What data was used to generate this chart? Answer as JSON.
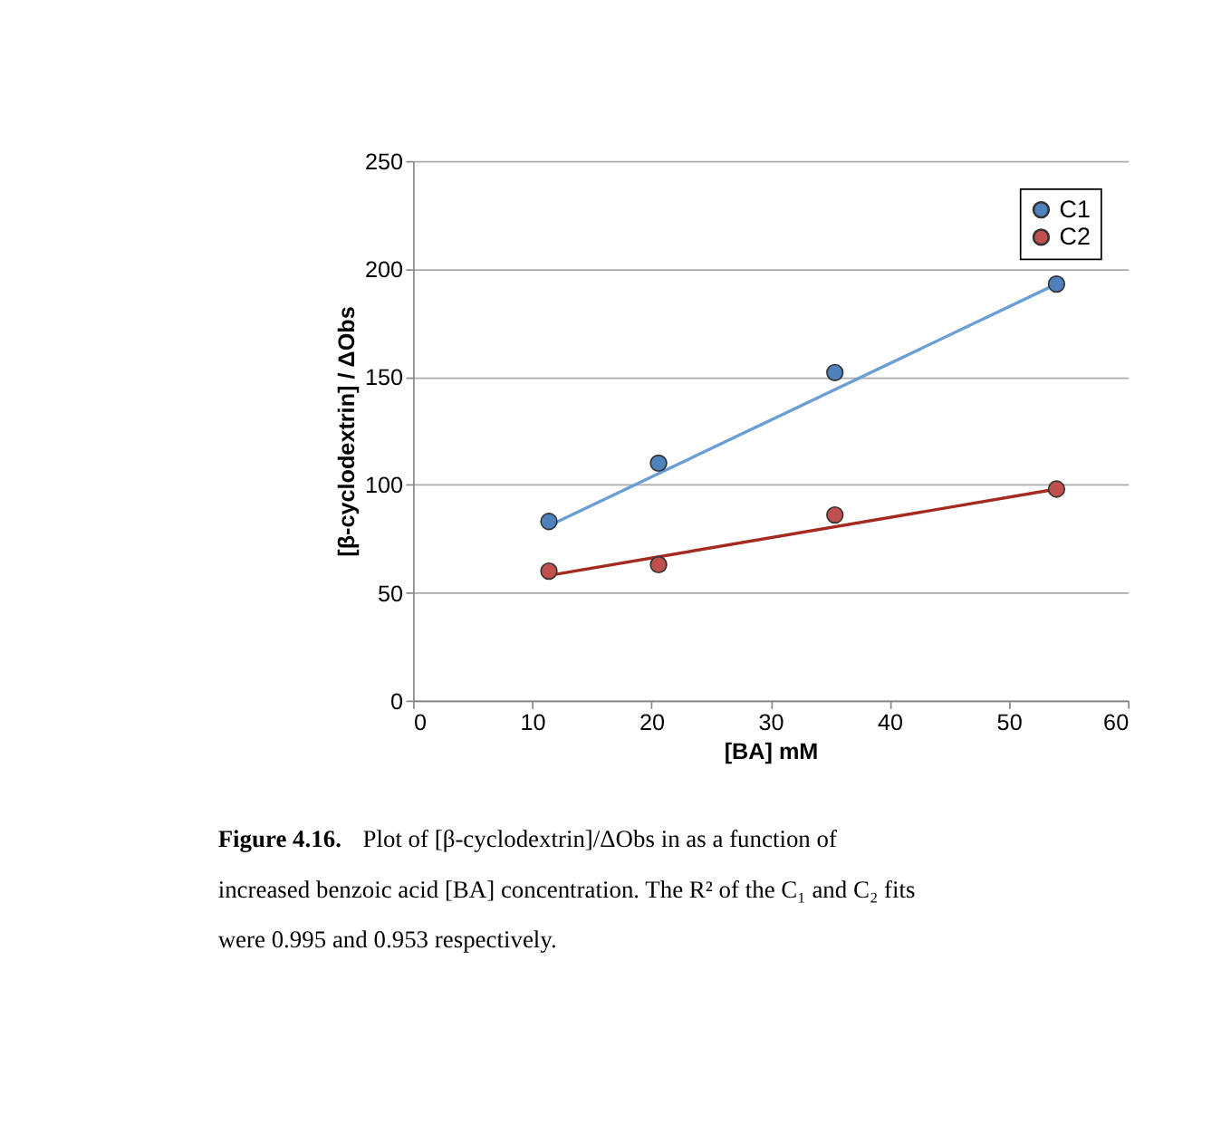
{
  "chart_data": {
    "type": "scatter",
    "xlabel": "[BA] mM",
    "ylabel": "[β-cyclodextrin] / ΔObs",
    "xlim": [
      0,
      60
    ],
    "xticks": [
      0,
      10,
      20,
      30,
      40,
      50,
      60
    ],
    "ylim": [
      0,
      250
    ],
    "yticks": [
      0,
      50,
      100,
      150,
      200,
      250
    ],
    "grid": "y",
    "legend": "top right",
    "series": [
      {
        "name": "C1",
        "marker": "circle",
        "color": "#4f81bd",
        "x": [
          11.4,
          20.6,
          35.4,
          54.0
        ],
        "values": [
          83,
          110,
          152,
          193
        ]
      },
      {
        "name": "C2",
        "marker": "circle",
        "color": "#c0504d",
        "x": [
          11.4,
          20.6,
          35.4,
          54.0
        ],
        "values": [
          60,
          63,
          86,
          98
        ]
      },
      {
        "type": "line",
        "marker": "none",
        "line_style": "solid",
        "color": "#6a9ed6",
        "x": [
          11.4,
          54.0
        ],
        "values": [
          81,
          193
        ]
      },
      {
        "type": "line",
        "marker": "none",
        "line_style": "solid",
        "color": "#a52a1e",
        "x": [
          11.4,
          54.0
        ],
        "values": [
          58,
          98
        ]
      }
    ],
    "annotations": [
      "Figure 4.16.",
      "Plot of [β-cyclodextrin]/ΔObs in as a function of increased benzoic acid [BA] concentration.  The R² of the C₁ and C₂ fits were 0.995 and 0.953 respectively."
    ]
  }
}
